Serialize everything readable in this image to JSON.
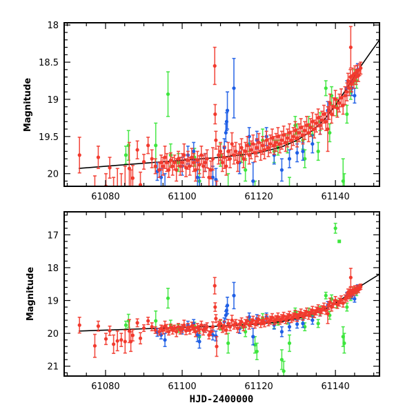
{
  "chart_data": [
    {
      "type": "scatter",
      "panel": "top",
      "title": "",
      "xlabel": "",
      "ylabel": "Magnitude",
      "xlim": [
        61069.2,
        61151.5
      ],
      "ylim": [
        20.17,
        17.97
      ],
      "y_inverted": true,
      "xticks": [
        61080,
        61100,
        61120,
        61140
      ],
      "xtick_labels": [
        "61080",
        "61100",
        "61120",
        "61140"
      ],
      "yticks": [
        18,
        18.5,
        19,
        19.5,
        20
      ],
      "ytick_labels": [
        "18",
        "18.5",
        "19",
        "19.5",
        "20"
      ],
      "grid": false,
      "legend": "none"
    },
    {
      "type": "scatter",
      "panel": "bottom",
      "title": "",
      "xlabel": "HJD-2400000",
      "ylabel": "Magnitude",
      "xlim": [
        61069.2,
        61151.5
      ],
      "ylim": [
        21.3,
        16.3
      ],
      "y_inverted": true,
      "xticks": [
        61080,
        61100,
        61120,
        61140
      ],
      "xtick_labels": [
        "61080",
        "61100",
        "61120",
        "61140"
      ],
      "yticks": [
        17,
        18,
        19,
        20,
        21
      ],
      "ytick_labels": [
        "17",
        "18",
        "19",
        "20",
        "21"
      ],
      "grid": false,
      "legend": "none"
    }
  ],
  "series": [
    {
      "name": "red",
      "color": "#f23a2e",
      "points": [
        [
          61073.2,
          19.75,
          0.24
        ],
        [
          61077.2,
          20.38,
          0.35
        ],
        [
          61078.1,
          19.78,
          0.15
        ],
        [
          61080.1,
          20.17,
          0.17
        ],
        [
          61081.1,
          19.92,
          0.14
        ],
        [
          61082.1,
          20.33,
          0.28
        ],
        [
          61083.1,
          20.23,
          0.3
        ],
        [
          61084.1,
          20.2,
          0.2
        ],
        [
          61085.1,
          20.25,
          0.35
        ],
        [
          61086.2,
          19.93,
          0.35
        ],
        [
          61086.6,
          20.25,
          0.3
        ],
        [
          61087.1,
          20.06,
          0.17
        ],
        [
          61088.3,
          19.68,
          0.12
        ],
        [
          61089.1,
          20.15,
          0.17
        ],
        [
          61090.0,
          19.84,
          0.1
        ],
        [
          61091.1,
          19.62,
          0.11
        ],
        [
          61092.1,
          19.8,
          0.12
        ],
        [
          61093.0,
          19.9,
          0.1
        ],
        [
          61094.0,
          19.95,
          0.1
        ],
        [
          61094.5,
          19.85,
          0.1
        ],
        [
          61095.0,
          19.9,
          0.12
        ],
        [
          61095.5,
          19.78,
          0.15
        ],
        [
          61096.0,
          19.85,
          0.12
        ],
        [
          61096.5,
          19.95,
          0.1
        ],
        [
          61097.0,
          19.82,
          0.1
        ],
        [
          61097.5,
          19.9,
          0.12
        ],
        [
          61098.0,
          19.85,
          0.1
        ],
        [
          61098.5,
          19.95,
          0.15
        ],
        [
          61099.0,
          19.8,
          0.1
        ],
        [
          61099.5,
          19.9,
          0.12
        ],
        [
          61100.0,
          19.85,
          0.12
        ],
        [
          61100.5,
          19.75,
          0.15
        ],
        [
          61101.0,
          19.92,
          0.12
        ],
        [
          61101.5,
          19.82,
          0.12
        ],
        [
          61102.0,
          19.9,
          0.12
        ],
        [
          61102.5,
          19.78,
          0.12
        ],
        [
          61103.0,
          19.85,
          0.12
        ],
        [
          61103.5,
          19.95,
          0.15
        ],
        [
          61104.0,
          19.82,
          0.12
        ],
        [
          61104.5,
          19.88,
          0.12
        ],
        [
          61105.0,
          19.75,
          0.12
        ],
        [
          61105.5,
          19.9,
          0.15
        ],
        [
          61106.0,
          19.85,
          0.12
        ],
        [
          61106.5,
          19.8,
          0.12
        ],
        [
          61107.0,
          20.05,
          0.12
        ],
        [
          61107.5,
          19.95,
          0.12
        ],
        [
          61108.0,
          19.8,
          0.15
        ],
        [
          61108.5,
          18.55,
          0.25
        ],
        [
          61108.6,
          19.2,
          0.13
        ],
        [
          61108.8,
          19.55,
          0.12
        ],
        [
          61109.0,
          20.4,
          0.3
        ],
        [
          61109.5,
          19.75,
          0.12
        ],
        [
          61110.0,
          19.7,
          0.12
        ],
        [
          61110.5,
          19.85,
          0.12
        ],
        [
          61111.0,
          19.78,
          0.15
        ],
        [
          61111.5,
          19.9,
          0.12
        ],
        [
          61112.0,
          19.7,
          0.12
        ],
        [
          61112.5,
          19.8,
          0.12
        ],
        [
          61113.0,
          19.6,
          0.15
        ],
        [
          61113.5,
          19.75,
          0.12
        ],
        [
          61114.0,
          19.7,
          0.12
        ],
        [
          61114.5,
          19.85,
          0.12
        ],
        [
          61115.0,
          19.72,
          0.12
        ],
        [
          61115.5,
          19.65,
          0.12
        ],
        [
          61116.0,
          19.8,
          0.12
        ],
        [
          61116.5,
          19.7,
          0.12
        ],
        [
          61117.0,
          19.62,
          0.12
        ],
        [
          61117.5,
          19.75,
          0.12
        ],
        [
          61118.0,
          19.68,
          0.12
        ],
        [
          61118.5,
          19.6,
          0.12
        ],
        [
          61119.0,
          19.72,
          0.12
        ],
        [
          61119.5,
          19.65,
          0.12
        ],
        [
          61120.0,
          19.58,
          0.12
        ],
        [
          61120.5,
          19.7,
          0.12
        ],
        [
          61121.0,
          19.62,
          0.12
        ],
        [
          61121.5,
          19.68,
          0.12
        ],
        [
          61122.0,
          19.55,
          0.12
        ],
        [
          61122.5,
          19.65,
          0.12
        ],
        [
          61123.0,
          19.6,
          0.12
        ],
        [
          61123.5,
          19.52,
          0.12
        ],
        [
          61124.0,
          19.62,
          0.12
        ],
        [
          61124.5,
          19.58,
          0.12
        ],
        [
          61125.0,
          19.5,
          0.12
        ],
        [
          61125.5,
          19.6,
          0.12
        ],
        [
          61126.0,
          19.55,
          0.12
        ],
        [
          61126.5,
          19.48,
          0.12
        ],
        [
          61127.0,
          19.58,
          0.12
        ],
        [
          61127.5,
          19.52,
          0.12
        ],
        [
          61128.0,
          19.45,
          0.12
        ],
        [
          61128.5,
          19.55,
          0.12
        ],
        [
          61129.0,
          19.5,
          0.12
        ],
        [
          61129.5,
          19.42,
          0.12
        ],
        [
          61130.0,
          19.52,
          0.12
        ],
        [
          61130.5,
          19.45,
          0.12
        ],
        [
          61131.0,
          19.38,
          0.12
        ],
        [
          61131.5,
          19.48,
          0.12
        ],
        [
          61132.0,
          19.42,
          0.12
        ],
        [
          61132.5,
          19.35,
          0.12
        ],
        [
          61133.0,
          19.45,
          0.12
        ],
        [
          61133.5,
          19.38,
          0.12
        ],
        [
          61134.0,
          19.3,
          0.12
        ],
        [
          61134.5,
          19.4,
          0.12
        ],
        [
          61135.0,
          19.32,
          0.12
        ],
        [
          61135.5,
          19.25,
          0.12
        ],
        [
          61136.0,
          19.35,
          0.12
        ],
        [
          61136.5,
          19.28,
          0.12
        ],
        [
          61137.0,
          19.2,
          0.12
        ],
        [
          61137.5,
          19.3,
          0.12
        ],
        [
          61138.0,
          19.4,
          0.3
        ],
        [
          61138.3,
          19.15,
          0.12
        ],
        [
          61138.6,
          19.05,
          0.12
        ],
        [
          61139.0,
          19.2,
          0.12
        ],
        [
          61139.5,
          19.1,
          0.12
        ],
        [
          61140.0,
          19.0,
          0.12
        ],
        [
          61140.5,
          19.12,
          0.12
        ],
        [
          61141.0,
          19.05,
          0.12
        ],
        [
          61141.5,
          18.98,
          0.12
        ],
        [
          61142.0,
          19.08,
          0.12
        ],
        [
          61142.5,
          18.95,
          0.12
        ],
        [
          61143.0,
          18.9,
          0.12
        ],
        [
          61143.3,
          18.75,
          0.1
        ],
        [
          61143.6,
          18.85,
          0.1
        ],
        [
          61143.9,
          18.7,
          0.1
        ],
        [
          61144.0,
          18.3,
          0.28
        ],
        [
          61144.2,
          18.8,
          0.1
        ],
        [
          61144.5,
          18.68,
          0.1
        ],
        [
          61144.8,
          18.75,
          0.1
        ],
        [
          61145.1,
          18.65,
          0.1
        ],
        [
          61145.4,
          18.7,
          0.1
        ],
        [
          61145.7,
          18.62,
          0.08
        ],
        [
          61146.0,
          18.68,
          0.08
        ],
        [
          61146.3,
          18.6,
          0.08
        ],
        [
          61146.6,
          18.58,
          0.08
        ]
      ]
    },
    {
      "name": "green",
      "color": "#3de63d",
      "points": [
        [
          61085.3,
          19.75,
          0.12
        ],
        [
          61086.0,
          19.62,
          0.2
        ],
        [
          61093.1,
          19.62,
          0.3
        ],
        [
          61096.3,
          18.93,
          0.3
        ],
        [
          61097.0,
          19.75,
          0.15
        ],
        [
          61099.0,
          19.85,
          0.12
        ],
        [
          61103.2,
          19.78,
          0.12
        ],
        [
          61104.5,
          20.1,
          0.15
        ],
        [
          61110.0,
          19.75,
          0.15
        ],
        [
          61112.0,
          20.3,
          0.3
        ],
        [
          61115.5,
          19.75,
          0.1
        ],
        [
          61116.5,
          19.95,
          0.15
        ],
        [
          61117.5,
          19.6,
          0.1
        ],
        [
          61119.0,
          20.35,
          0.25
        ],
        [
          61119.5,
          20.55,
          0.25
        ],
        [
          61121.0,
          19.55,
          0.15
        ],
        [
          61124.0,
          19.7,
          0.15
        ],
        [
          61125.0,
          19.65,
          0.1
        ],
        [
          61126.0,
          20.8,
          0.3
        ],
        [
          61126.5,
          21.15,
          0.3
        ],
        [
          61127.5,
          19.6,
          0.12
        ],
        [
          61128.0,
          20.3,
          0.25
        ],
        [
          61129.5,
          19.35,
          0.12
        ],
        [
          61130.0,
          19.45,
          0.12
        ],
        [
          61131.5,
          19.55,
          0.12
        ],
        [
          61132.0,
          19.8,
          0.12
        ],
        [
          61133.0,
          19.35,
          0.12
        ],
        [
          61134.0,
          19.48,
          0.12
        ],
        [
          61135.5,
          19.7,
          0.12
        ],
        [
          61136.0,
          19.3,
          0.12
        ],
        [
          61137.5,
          18.85,
          0.1
        ],
        [
          61138.5,
          19.45,
          0.12
        ],
        [
          61139.0,
          18.95,
          0.12
        ],
        [
          61140.0,
          16.8,
          0.15
        ],
        [
          61140.3,
          19.1,
          0.12
        ],
        [
          61141.0,
          17.2,
          0.0
        ],
        [
          61142.0,
          20.1,
          0.3
        ],
        [
          61142.3,
          20.3,
          0.3
        ],
        [
          61143.0,
          19.2,
          0.12
        ],
        [
          61144.0,
          18.9,
          0.1
        ],
        [
          61145.0,
          18.7,
          0.1
        ],
        [
          61145.5,
          18.75,
          0.1
        ]
      ]
    },
    {
      "name": "blue",
      "color": "#1f5fe6",
      "points": [
        [
          61093.5,
          19.97,
          0.12
        ],
        [
          61094.5,
          20.05,
          0.12
        ],
        [
          61095.5,
          20.2,
          0.2
        ],
        [
          61100.0,
          19.9,
          0.12
        ],
        [
          61101.5,
          19.75,
          0.12
        ],
        [
          61103.0,
          19.7,
          0.12
        ],
        [
          61104.0,
          20.05,
          0.2
        ],
        [
          61104.5,
          20.25,
          0.2
        ],
        [
          61106.0,
          19.85,
          0.12
        ],
        [
          61108.0,
          20.05,
          0.15
        ],
        [
          61108.8,
          20.08,
          0.15
        ],
        [
          61111.0,
          19.65,
          0.12
        ],
        [
          61111.4,
          19.45,
          0.12
        ],
        [
          61111.6,
          19.3,
          0.12
        ],
        [
          61111.8,
          19.15,
          0.25
        ],
        [
          61113.5,
          18.85,
          0.4
        ],
        [
          61115.0,
          19.85,
          0.15
        ],
        [
          61117.5,
          19.5,
          0.12
        ],
        [
          61118.5,
          20.1,
          0.25
        ],
        [
          61119.5,
          19.55,
          0.12
        ],
        [
          61122.0,
          19.5,
          0.12
        ],
        [
          61124.0,
          19.75,
          0.12
        ],
        [
          61126.0,
          19.95,
          0.15
        ],
        [
          61128.0,
          19.8,
          0.12
        ],
        [
          61130.0,
          19.72,
          0.12
        ],
        [
          61131.5,
          19.7,
          0.12
        ],
        [
          61134.0,
          19.6,
          0.12
        ],
        [
          61136.0,
          19.35,
          0.12
        ],
        [
          61138.0,
          19.15,
          0.12
        ],
        [
          61143.0,
          18.85,
          0.1
        ],
        [
          61144.3,
          18.85,
          0.1
        ],
        [
          61145.0,
          18.95,
          0.1
        ],
        [
          61145.8,
          18.6,
          0.08
        ]
      ]
    }
  ],
  "model_curve": {
    "name": "fit",
    "color": "#000000",
    "points": [
      [
        61073.0,
        19.93
      ],
      [
        61080.0,
        19.9
      ],
      [
        61090.0,
        19.86
      ],
      [
        61100.0,
        19.82
      ],
      [
        61110.0,
        19.78
      ],
      [
        61120.0,
        19.72
      ],
      [
        61126.0,
        19.64
      ],
      [
        61130.0,
        19.55
      ],
      [
        61134.0,
        19.42
      ],
      [
        61137.0,
        19.28
      ],
      [
        61140.0,
        19.08
      ],
      [
        61143.0,
        18.85
      ],
      [
        61146.0,
        18.6
      ],
      [
        61149.0,
        18.38
      ],
      [
        61151.5,
        18.2
      ]
    ]
  }
}
